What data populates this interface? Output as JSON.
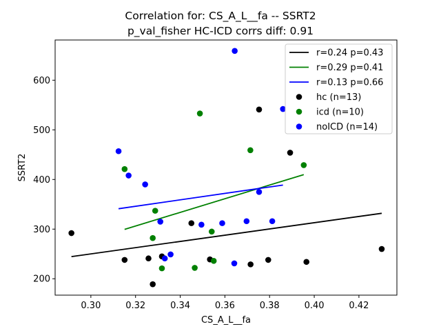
{
  "chart_data": {
    "type": "scatter",
    "title": [
      "Correlation for: CS_A_L__fa -- SSRT2",
      "p_val_fisher HC-ICD corrs diff: 0.91"
    ],
    "xlabel": "CS_A_L__fa",
    "ylabel": "SSRT2",
    "xlim": [
      0.284,
      0.437
    ],
    "ylim": [
      167,
      681
    ],
    "xticks": [
      0.3,
      0.32,
      0.34,
      0.36,
      0.38,
      0.4,
      0.42
    ],
    "xtick_labels": [
      "0.30",
      "0.32",
      "0.34",
      "0.36",
      "0.38",
      "0.40",
      "0.42"
    ],
    "yticks": [
      200,
      300,
      400,
      500,
      600
    ],
    "ytick_labels": [
      "200",
      "300",
      "400",
      "500",
      "600"
    ],
    "grid": false,
    "legend_position": "top-right",
    "fit_lines": [
      {
        "label": "r=0.24 p=0.43",
        "color": "#000000",
        "x": [
          0.2913,
          0.4302
        ],
        "y": [
          244.6,
          331.9
        ]
      },
      {
        "label": "r=0.29 p=0.41",
        "color": "#008000",
        "x": [
          0.3151,
          0.3953
        ],
        "y": [
          299.5,
          409.8
        ]
      },
      {
        "label": "r=0.13 p=0.66",
        "color": "#0000ff",
        "x": [
          0.3124,
          0.386
        ],
        "y": [
          341.1,
          388.8
        ]
      }
    ],
    "series": [
      {
        "name": "hc (n=13)",
        "color": "#000000",
        "points": [
          [
            0.2913,
            292
          ],
          [
            0.3151,
            238
          ],
          [
            0.3258,
            241
          ],
          [
            0.3277,
            189
          ],
          [
            0.3318,
            245
          ],
          [
            0.345,
            312
          ],
          [
            0.3533,
            239
          ],
          [
            0.3715,
            229
          ],
          [
            0.3753,
            541
          ],
          [
            0.3794,
            238
          ],
          [
            0.3892,
            454
          ],
          [
            0.3965,
            234
          ],
          [
            0.4302,
            260
          ]
        ]
      },
      {
        "name": "icd (n=10)",
        "color": "#008000",
        "points": [
          [
            0.3151,
            421
          ],
          [
            0.3277,
            282
          ],
          [
            0.3288,
            337
          ],
          [
            0.3318,
            221
          ],
          [
            0.3465,
            222
          ],
          [
            0.3488,
            533
          ],
          [
            0.3541,
            295
          ],
          [
            0.355,
            236
          ],
          [
            0.3714,
            459
          ],
          [
            0.3953,
            429
          ]
        ]
      },
      {
        "name": "noICD (n=14)",
        "color": "#0000ff",
        "points": [
          [
            0.3124,
            457
          ],
          [
            0.3169,
            408
          ],
          [
            0.3243,
            390
          ],
          [
            0.3311,
            315
          ],
          [
            0.3331,
            241
          ],
          [
            0.3357,
            249
          ],
          [
            0.3495,
            309
          ],
          [
            0.3588,
            312
          ],
          [
            0.3642,
            231
          ],
          [
            0.3644,
            659
          ],
          [
            0.3697,
            316
          ],
          [
            0.3753,
            375
          ],
          [
            0.3812,
            316
          ],
          [
            0.386,
            542
          ]
        ]
      }
    ]
  }
}
